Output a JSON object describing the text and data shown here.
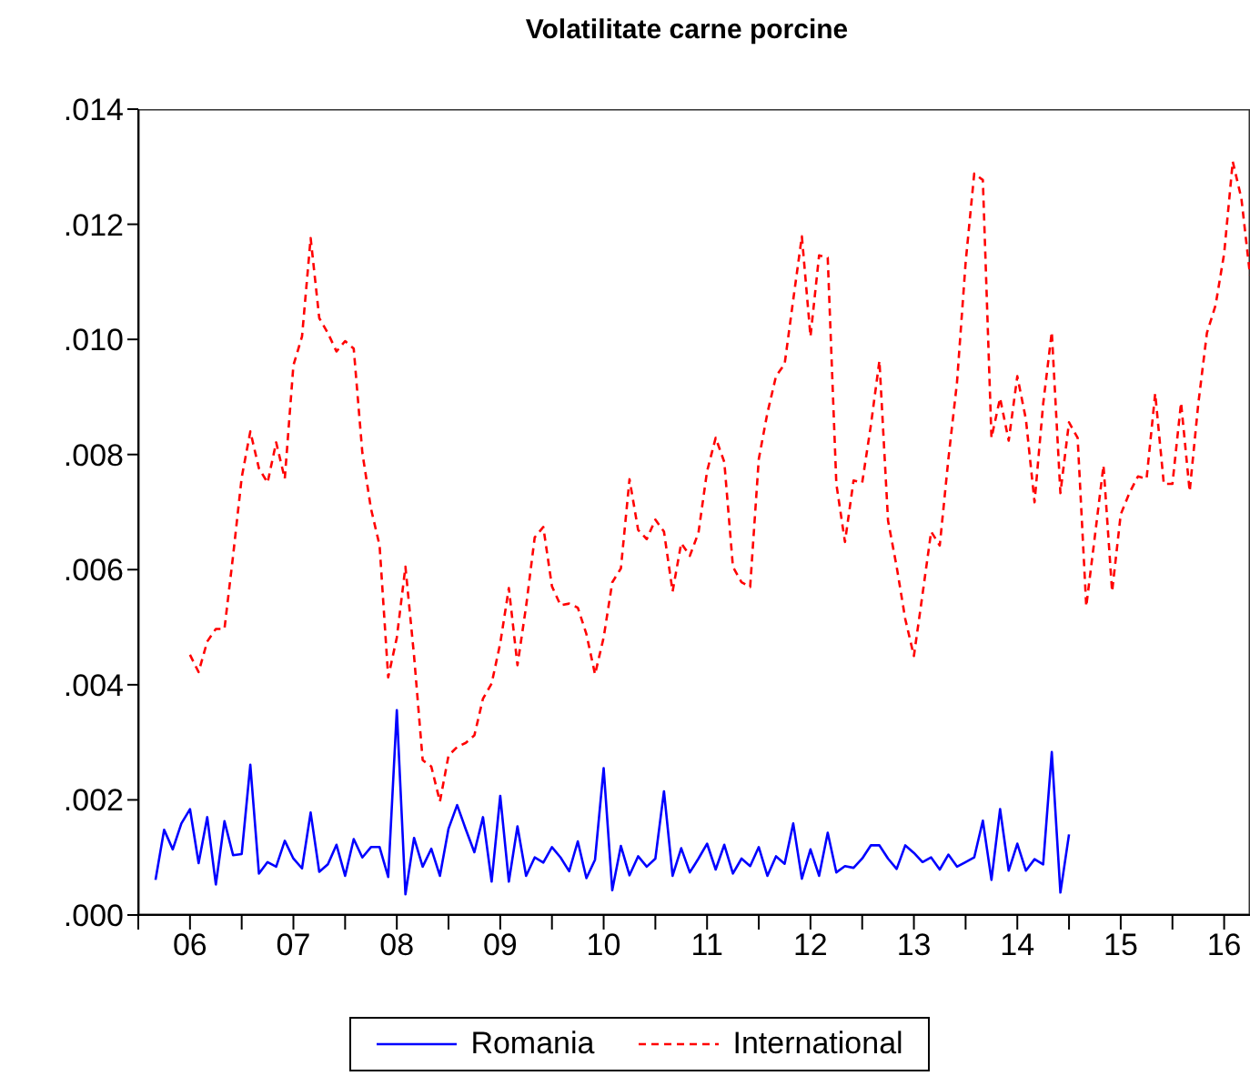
{
  "chart_data": {
    "type": "line",
    "title": "Volatilitate carne porcine",
    "x": [
      "2006-03",
      "2006-04",
      "2006-05",
      "2006-06",
      "2006-07",
      "2006-08",
      "2006-09",
      "2006-10",
      "2006-11",
      "2006-12",
      "2007-01",
      "2007-02",
      "2007-03",
      "2007-04",
      "2007-05",
      "2007-06",
      "2007-07",
      "2007-08",
      "2007-09",
      "2007-10",
      "2007-11",
      "2007-12",
      "2008-01",
      "2008-02",
      "2008-03",
      "2008-04",
      "2008-05",
      "2008-06",
      "2008-07",
      "2008-08",
      "2008-09",
      "2008-10",
      "2008-11",
      "2008-12",
      "2009-01",
      "2009-02",
      "2009-03",
      "2009-04",
      "2009-05",
      "2009-06",
      "2009-07",
      "2009-08",
      "2009-09",
      "2009-10",
      "2009-11",
      "2009-12",
      "2010-01",
      "2010-02",
      "2010-03",
      "2010-04",
      "2010-05",
      "2010-06",
      "2010-07",
      "2010-08",
      "2010-09",
      "2010-10",
      "2010-11",
      "2010-12",
      "2011-01",
      "2011-02",
      "2011-03",
      "2011-04",
      "2011-05",
      "2011-06",
      "2011-07",
      "2011-08",
      "2011-09",
      "2011-10",
      "2011-11",
      "2011-12",
      "2012-01",
      "2012-02",
      "2012-03",
      "2012-04",
      "2012-05",
      "2012-06",
      "2012-07",
      "2012-08",
      "2012-09",
      "2012-10",
      "2012-11",
      "2012-12",
      "2013-01",
      "2013-02",
      "2013-03",
      "2013-04",
      "2013-05",
      "2013-06",
      "2013-07",
      "2013-08",
      "2013-09",
      "2013-10",
      "2013-11",
      "2013-12",
      "2014-01",
      "2014-02",
      "2014-03",
      "2014-04",
      "2014-05",
      "2014-06",
      "2014-07",
      "2014-08",
      "2014-09",
      "2014-10",
      "2014-11",
      "2014-12",
      "2015-01",
      "2015-02",
      "2015-03",
      "2015-04",
      "2015-05",
      "2015-06",
      "2015-07",
      "2015-08",
      "2015-09",
      "2015-10",
      "2015-11",
      "2015-12",
      "2016-01",
      "2016-02",
      "2016-03",
      "2016-04",
      "2016-05",
      "2016-06",
      "2016-07",
      "2016-08",
      "2016-09",
      "2016-10"
    ],
    "series": [
      {
        "name": "Romania",
        "color": "#0000ff",
        "line_style": "solid",
        "values": [
          0.00061,
          0.00148,
          0.00114,
          0.00159,
          0.00184,
          0.0009,
          0.0017,
          0.00053,
          0.00163,
          0.00104,
          0.00106,
          0.00261,
          0.00072,
          0.00092,
          0.00084,
          0.00129,
          0.00098,
          0.00081,
          0.00178,
          0.00075,
          0.00088,
          0.00122,
          0.00068,
          0.00132,
          0.001,
          0.00118,
          0.00118,
          0.00066,
          0.00356,
          0.00036,
          0.00134,
          0.00084,
          0.00115,
          0.00068,
          0.0015,
          0.00191,
          0.00149,
          0.00109,
          0.0017,
          0.00058,
          0.00207,
          0.00058,
          0.00154,
          0.00068,
          0.001,
          0.00091,
          0.00118,
          0.001,
          0.00076,
          0.00128,
          0.00064,
          0.00096,
          0.00255,
          0.00043,
          0.0012,
          0.00069,
          0.00102,
          0.00084,
          0.00098,
          0.00215,
          0.00068,
          0.00116,
          0.00074,
          0.00098,
          0.00124,
          0.00079,
          0.00122,
          0.00072,
          0.00098,
          0.00085,
          0.00118,
          0.00068,
          0.00102,
          0.00089,
          0.00159,
          0.00063,
          0.00114,
          0.00068,
          0.00143,
          0.00074,
          0.00085,
          0.00082,
          0.00098,
          0.00121,
          0.00121,
          0.00098,
          0.0008,
          0.00121,
          0.00108,
          0.00092,
          0.001,
          0.00079,
          0.00105,
          0.00084,
          0.00092,
          0.001,
          0.00164,
          0.00061,
          0.00184,
          0.00077,
          0.00124,
          0.00077,
          0.00097,
          0.00088,
          0.00283,
          0.00039,
          0.0014,
          null,
          null,
          null,
          null,
          null,
          null,
          null,
          null,
          null,
          null,
          null,
          null,
          null,
          null,
          null,
          null,
          null,
          null,
          null,
          null,
          null
        ]
      },
      {
        "name": "International",
        "color": "#ff0000",
        "line_style": "dashed",
        "values": [
          null,
          null,
          null,
          null,
          0.00452,
          0.00422,
          0.00475,
          0.00497,
          0.00497,
          0.00624,
          0.0076,
          0.0084,
          0.00776,
          0.00751,
          0.00821,
          0.00758,
          0.00955,
          0.01005,
          0.01176,
          0.01037,
          0.01011,
          0.00979,
          0.00997,
          0.00984,
          0.00803,
          0.00706,
          0.00642,
          0.00413,
          0.00482,
          0.00605,
          0.0045,
          0.00269,
          0.00258,
          0.00197,
          0.00277,
          0.00292,
          0.00299,
          0.00312,
          0.00376,
          0.00402,
          0.00472,
          0.00568,
          0.00434,
          0.00536,
          0.00656,
          0.00674,
          0.00571,
          0.00538,
          0.00541,
          0.00534,
          0.00488,
          0.00418,
          0.00482,
          0.00578,
          0.00602,
          0.00757,
          0.00669,
          0.00653,
          0.00687,
          0.00666,
          0.00562,
          0.00646,
          0.00624,
          0.00664,
          0.00771,
          0.00829,
          0.00787,
          0.00605,
          0.00578,
          0.0057,
          0.00792,
          0.00872,
          0.00936,
          0.00957,
          0.01069,
          0.01179,
          0.01005,
          0.01146,
          0.01142,
          0.00749,
          0.00648,
          0.00755,
          0.00751,
          0.0085,
          0.00963,
          0.00685,
          0.00605,
          0.00514,
          0.0045,
          0.00557,
          0.00666,
          0.00642,
          0.00792,
          0.00925,
          0.01133,
          0.01288,
          0.01277,
          0.00829,
          0.00898,
          0.00824,
          0.00936,
          0.00861,
          0.00717,
          0.00888,
          0.01013,
          0.00733,
          0.00856,
          0.00829,
          0.00536,
          0.00658,
          0.00781,
          0.00562,
          0.00696,
          0.00733,
          0.00762,
          0.00758,
          0.00906,
          0.00749,
          0.00749,
          0.0089,
          0.00736,
          0.00888,
          0.01011,
          0.01059,
          0.01149,
          0.01309,
          0.01245,
          0.01112
        ]
      }
    ],
    "xlim": [
      "2006-01",
      "2016-10"
    ],
    "xticks": [
      {
        "value": "2006-01",
        "label": null
      },
      {
        "value": "2006-07",
        "label": "06"
      },
      {
        "value": "2007-01",
        "label": null
      },
      {
        "value": "2007-07",
        "label": "07"
      },
      {
        "value": "2008-01",
        "label": null
      },
      {
        "value": "2008-07",
        "label": "08"
      },
      {
        "value": "2009-01",
        "label": null
      },
      {
        "value": "2009-07",
        "label": "09"
      },
      {
        "value": "2010-01",
        "label": null
      },
      {
        "value": "2010-07",
        "label": "10"
      },
      {
        "value": "2011-01",
        "label": null
      },
      {
        "value": "2011-07",
        "label": "11"
      },
      {
        "value": "2012-01",
        "label": null
      },
      {
        "value": "2012-07",
        "label": "12"
      },
      {
        "value": "2013-01",
        "label": null
      },
      {
        "value": "2013-07",
        "label": "13"
      },
      {
        "value": "2014-01",
        "label": null
      },
      {
        "value": "2014-07",
        "label": "14"
      },
      {
        "value": "2015-01",
        "label": null
      },
      {
        "value": "2015-07",
        "label": "15"
      },
      {
        "value": "2016-01",
        "label": null
      },
      {
        "value": "2016-07",
        "label": "16"
      }
    ],
    "ylim": [
      0,
      0.014
    ],
    "yticks": [
      {
        "value": 0,
        "label": ".000"
      },
      {
        "value": 0.002,
        "label": ".002"
      },
      {
        "value": 0.004,
        "label": ".004"
      },
      {
        "value": 0.006,
        "label": ".006"
      },
      {
        "value": 0.008,
        "label": ".008"
      },
      {
        "value": 0.01,
        "label": ".010"
      },
      {
        "value": 0.012,
        "label": ".012"
      },
      {
        "value": 0.014,
        "label": ".014"
      }
    ],
    "grid": false,
    "legend": "bottom",
    "marker": "none"
  }
}
